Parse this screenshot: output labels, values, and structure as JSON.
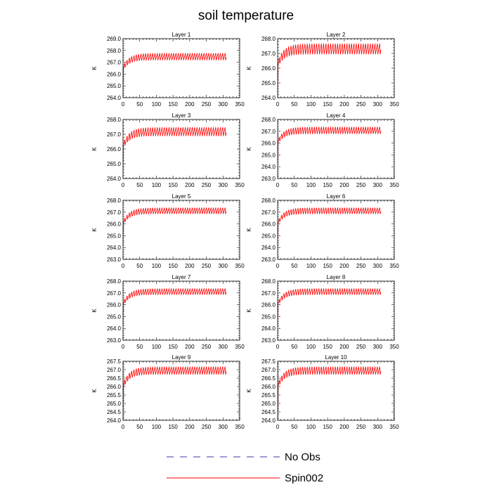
{
  "title": "soil temperature",
  "legend": [
    {
      "label": "No Obs",
      "color": "#3a3aa8",
      "dash": "dashed"
    },
    {
      "label": "Spin002",
      "color": "#ff0000",
      "dash": "solid"
    }
  ],
  "chart_data": [
    {
      "type": "line",
      "title": "Layer 1",
      "ylabel": "K",
      "xlim": [
        0,
        350
      ],
      "ylim": [
        264.0,
        269.0
      ],
      "xticks": [
        0,
        50,
        100,
        150,
        200,
        250,
        300,
        350
      ],
      "yticks": [
        "264.0",
        "265.0",
        "266.0",
        "267.0",
        "268.0",
        "269.0"
      ],
      "series": [
        {
          "name": "Spin002",
          "color": "#ff0000",
          "x_end": 310,
          "start": 264.0,
          "spinup_low": 266.2,
          "low": 266.9,
          "high": 267.8,
          "period": 7
        }
      ]
    },
    {
      "type": "line",
      "title": "Layer 2",
      "ylabel": "K",
      "xlim": [
        0,
        350
      ],
      "ylim": [
        264.0,
        268.0
      ],
      "xticks": [
        0,
        50,
        100,
        150,
        200,
        250,
        300,
        350
      ],
      "yticks": [
        "264.0",
        "265.0",
        "266.0",
        "267.0",
        "268.0"
      ],
      "series": [
        {
          "name": "Spin002",
          "color": "#ff0000",
          "x_end": 310,
          "start": 264.0,
          "spinup_low": 265.9,
          "low": 266.6,
          "high": 267.7,
          "period": 7
        }
      ]
    },
    {
      "type": "line",
      "title": "Layer 3",
      "ylabel": "K",
      "xlim": [
        0,
        350
      ],
      "ylim": [
        264.0,
        268.0
      ],
      "xticks": [
        0,
        50,
        100,
        150,
        200,
        250,
        300,
        350
      ],
      "yticks": [
        "264.0",
        "265.0",
        "266.0",
        "267.0",
        "268.0"
      ],
      "series": [
        {
          "name": "Spin002",
          "color": "#ff0000",
          "x_end": 310,
          "start": 264.0,
          "spinup_low": 265.9,
          "low": 266.6,
          "high": 267.5,
          "period": 7
        }
      ]
    },
    {
      "type": "line",
      "title": "Layer 4",
      "ylabel": "K",
      "xlim": [
        0,
        350
      ],
      "ylim": [
        263.0,
        268.0
      ],
      "xticks": [
        0,
        50,
        100,
        150,
        200,
        250,
        300,
        350
      ],
      "yticks": [
        "263.0",
        "264.0",
        "265.0",
        "266.0",
        "267.0",
        "268.0"
      ],
      "series": [
        {
          "name": "Spin002",
          "color": "#ff0000",
          "x_end": 310,
          "start": 263.8,
          "spinup_low": 265.8,
          "low": 266.5,
          "high": 267.4,
          "period": 7
        }
      ]
    },
    {
      "type": "line",
      "title": "Layer 5",
      "ylabel": "K",
      "xlim": [
        0,
        350
      ],
      "ylim": [
        263.0,
        268.0
      ],
      "xticks": [
        0,
        50,
        100,
        150,
        200,
        250,
        300,
        350
      ],
      "yticks": [
        "263.0",
        "264.0",
        "265.0",
        "266.0",
        "267.0",
        "268.0"
      ],
      "series": [
        {
          "name": "Spin002",
          "color": "#ff0000",
          "x_end": 310,
          "start": 264.0,
          "spinup_low": 265.8,
          "low": 266.6,
          "high": 267.4,
          "period": 7
        }
      ]
    },
    {
      "type": "line",
      "title": "Layer 6",
      "ylabel": "K",
      "xlim": [
        0,
        350
      ],
      "ylim": [
        263.0,
        268.0
      ],
      "xticks": [
        0,
        50,
        100,
        150,
        200,
        250,
        300,
        350
      ],
      "yticks": [
        "263.0",
        "264.0",
        "265.0",
        "266.0",
        "267.0",
        "268.0"
      ],
      "series": [
        {
          "name": "Spin002",
          "color": "#ff0000",
          "x_end": 310,
          "start": 264.0,
          "spinup_low": 265.8,
          "low": 266.6,
          "high": 267.4,
          "period": 7
        }
      ]
    },
    {
      "type": "line",
      "title": "Layer 7",
      "ylabel": "K",
      "xlim": [
        0,
        350
      ],
      "ylim": [
        263.0,
        268.0
      ],
      "xticks": [
        0,
        50,
        100,
        150,
        200,
        250,
        300,
        350
      ],
      "yticks": [
        "263.0",
        "264.0",
        "265.0",
        "266.0",
        "267.0",
        "268.0"
      ],
      "series": [
        {
          "name": "Spin002",
          "color": "#ff0000",
          "x_end": 310,
          "start": 264.2,
          "spinup_low": 265.8,
          "low": 266.6,
          "high": 267.4,
          "period": 7
        }
      ]
    },
    {
      "type": "line",
      "title": "Layer 8",
      "ylabel": "K",
      "xlim": [
        0,
        350
      ],
      "ylim": [
        263.0,
        268.0
      ],
      "xticks": [
        0,
        50,
        100,
        150,
        200,
        250,
        300,
        350
      ],
      "yticks": [
        "263.0",
        "264.0",
        "265.0",
        "266.0",
        "267.0",
        "268.0"
      ],
      "series": [
        {
          "name": "Spin002",
          "color": "#ff0000",
          "x_end": 310,
          "start": 264.2,
          "spinup_low": 265.8,
          "low": 266.6,
          "high": 267.4,
          "period": 7
        }
      ]
    },
    {
      "type": "line",
      "title": "Layer 9",
      "ylabel": "K",
      "xlim": [
        0,
        350
      ],
      "ylim": [
        264.0,
        267.5
      ],
      "xticks": [
        0,
        50,
        100,
        150,
        200,
        250,
        300,
        350
      ],
      "yticks": [
        "264.0",
        "264.5",
        "265.0",
        "265.5",
        "266.0",
        "266.5",
        "267.0",
        "267.5"
      ],
      "series": [
        {
          "name": "Spin002",
          "color": "#ff0000",
          "x_end": 310,
          "start": 264.2,
          "spinup_low": 265.8,
          "low": 266.5,
          "high": 267.2,
          "period": 7
        }
      ]
    },
    {
      "type": "line",
      "title": "Layer 10",
      "ylabel": "K",
      "xlim": [
        0,
        350
      ],
      "ylim": [
        264.0,
        267.5
      ],
      "xticks": [
        0,
        50,
        100,
        150,
        200,
        250,
        300,
        350
      ],
      "yticks": [
        "264.0",
        "264.5",
        "265.0",
        "265.5",
        "266.0",
        "266.5",
        "267.0",
        "267.5"
      ],
      "series": [
        {
          "name": "Spin002",
          "color": "#ff0000",
          "x_end": 310,
          "start": 264.2,
          "spinup_low": 265.8,
          "low": 266.5,
          "high": 267.2,
          "period": 7
        }
      ]
    }
  ]
}
